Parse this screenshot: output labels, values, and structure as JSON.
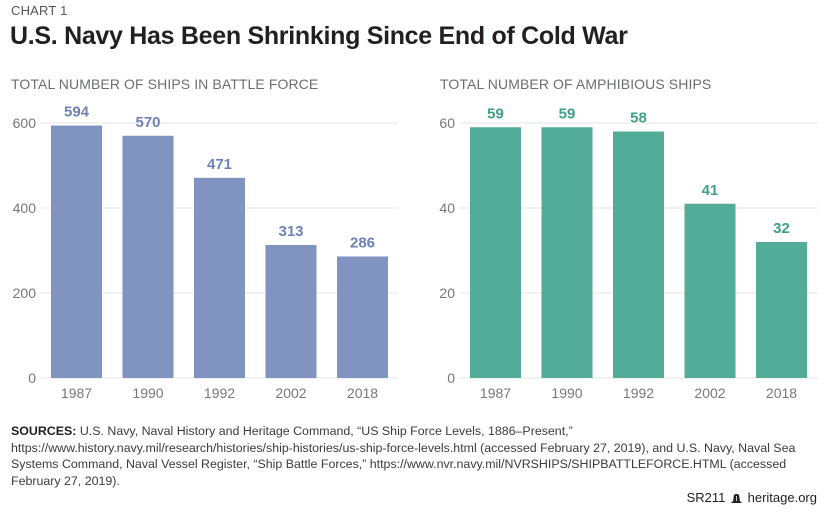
{
  "kicker": "CHART 1",
  "title": "U.S. Navy Has Been Shrinking Since End of Cold War",
  "sources": {
    "label": "SOURCES:",
    "text": "U.S. Navy, Naval History and Heritage Command, “US Ship Force Levels, 1886–Present,” https://www.history.navy.mil/research/histories/ship-histories/us-ship-force-levels.html (accessed February 27, 2019), and U.S. Navy, Naval Sea Systems Command, Naval Vessel Register, “Ship Battle Forces,” https://www.nvr.navy.mil/NVRSHIPS/SHIPBATTLEFORCE.HTML (accessed February 27, 2019)."
  },
  "footer": {
    "report_id": "SR211",
    "icon": "liberty-bell-icon",
    "site": "heritage.org"
  },
  "chart_data": [
    {
      "type": "bar",
      "title": "TOTAL NUMBER OF SHIPS IN BATTLE FORCE",
      "categories": [
        "1987",
        "1990",
        "1992",
        "2002",
        "2018"
      ],
      "values": [
        594,
        570,
        471,
        313,
        286
      ],
      "yticks": [
        0,
        200,
        400,
        600
      ],
      "ylim": [
        0,
        600
      ],
      "xlabel": "",
      "ylabel": "",
      "grid": true,
      "color": "#8193c1",
      "label_color": "#6f82b8"
    },
    {
      "type": "bar",
      "title": "TOTAL NUMBER OF AMPHIBIOUS SHIPS",
      "categories": [
        "1987",
        "1990",
        "1992",
        "2002",
        "2018"
      ],
      "values": [
        59,
        59,
        58,
        41,
        32
      ],
      "yticks": [
        0,
        20,
        40,
        60
      ],
      "ylim": [
        0,
        60
      ],
      "xlabel": "",
      "ylabel": "",
      "grid": true,
      "color": "#52ac98",
      "label_color": "#3fa088"
    }
  ]
}
